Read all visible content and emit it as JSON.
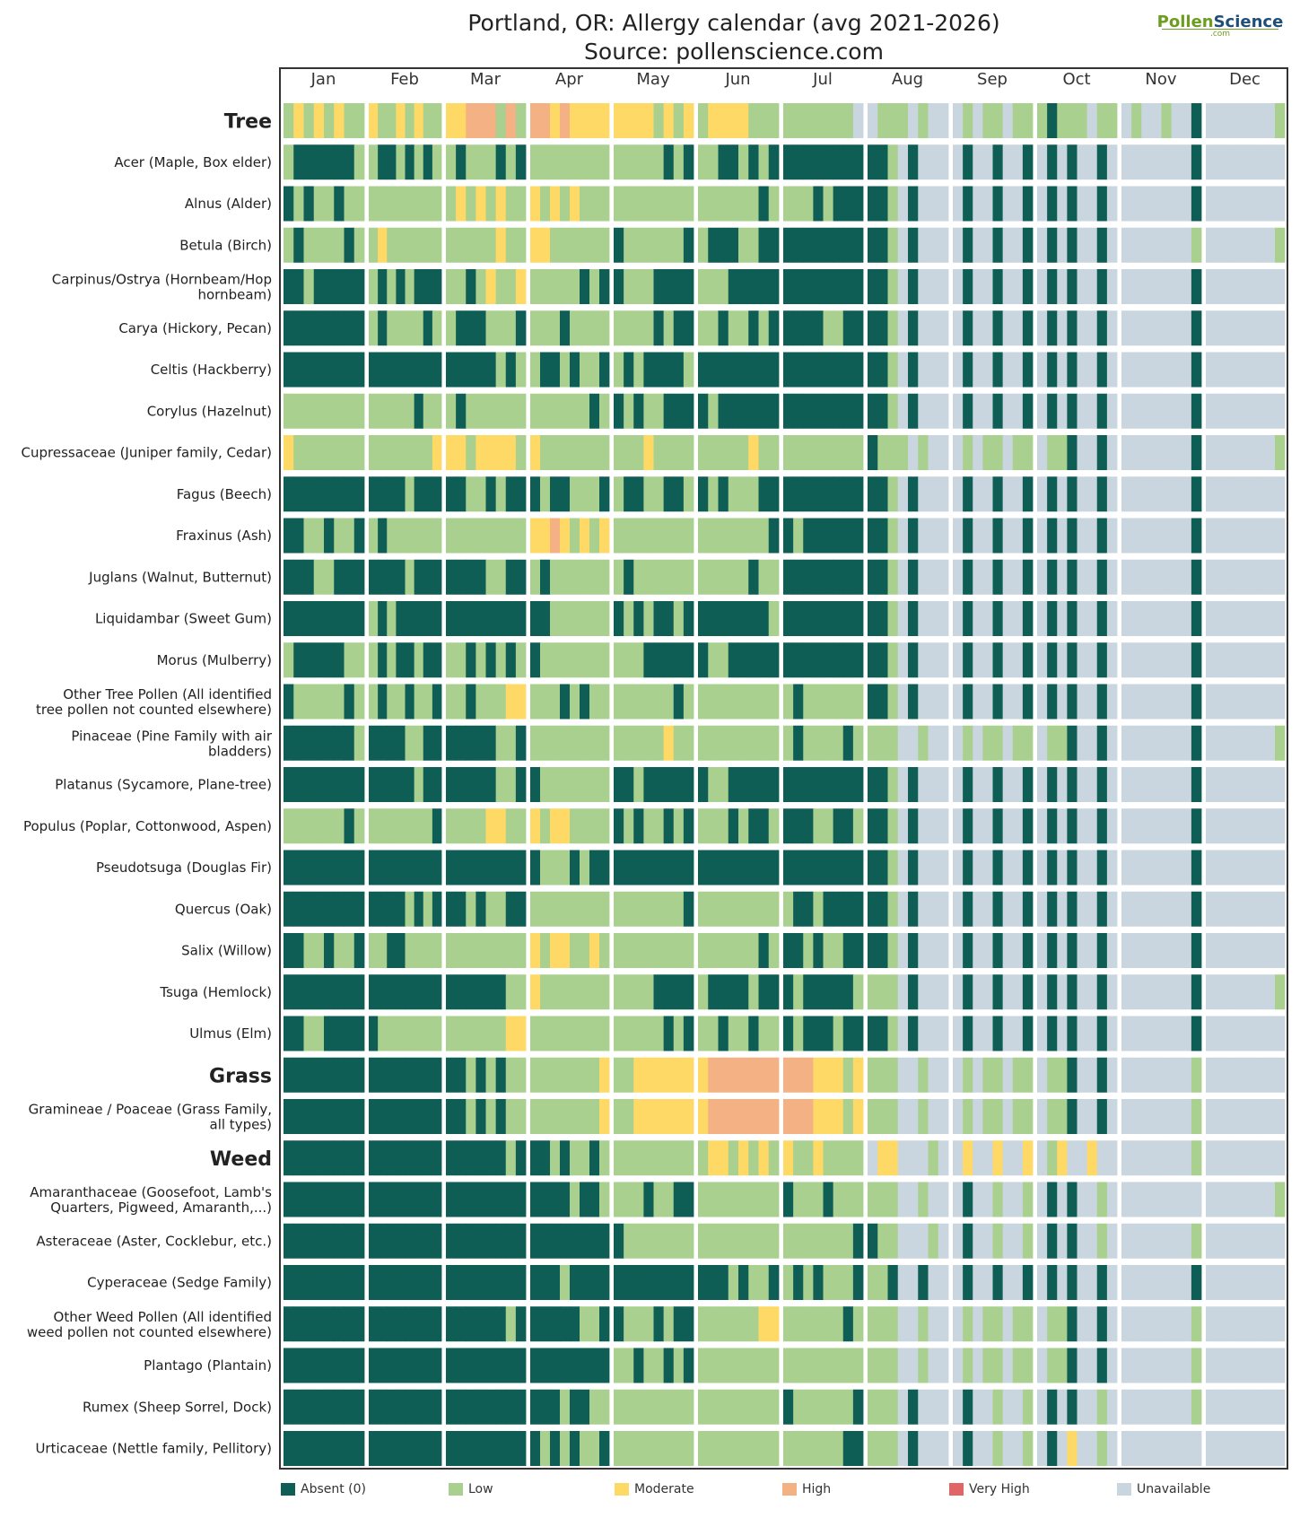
{
  "header": {
    "title_line1": "Portland, OR: Allergy calendar (avg 2021-2026)",
    "title_line2": "Source: pollenscience.com",
    "logo_pollen": "Pollen",
    "logo_science": "Science",
    "logo_com": ".com"
  },
  "colors": {
    "absent": "#0e5e55",
    "low": "#a9d08e",
    "moderate": "#ffd966",
    "high": "#f4b183",
    "very_high": "#e06666",
    "unavailable": "#c9d6df"
  },
  "legend": [
    {
      "key": "absent",
      "label": "Absent (0)"
    },
    {
      "key": "low",
      "label": "Low"
    },
    {
      "key": "moderate",
      "label": "Moderate"
    },
    {
      "key": "high",
      "label": "High"
    },
    {
      "key": "very_high",
      "label": "Very High"
    },
    {
      "key": "unavailable",
      "label": "Unavailable"
    }
  ],
  "chart_data": {
    "type": "heatmap",
    "title": "Portland, OR: Allergy calendar (avg 2021-2026)",
    "subtitle": "Source: pollenscience.com",
    "x_months": [
      "Jan",
      "Feb",
      "Mar",
      "Apr",
      "May",
      "Jun",
      "Jul",
      "Aug",
      "Sep",
      "Oct",
      "Nov",
      "Dec"
    ],
    "levels": [
      "absent",
      "low",
      "moderate",
      "high",
      "very_high",
      "unavailable"
    ],
    "encoding_note": "Each row lists 12 months; each month is a string of period codes: A=absent, L=low, M=moderate, H=high, V=very high, U=unavailable",
    "rows": [
      {
        "label": "Tree",
        "group": true,
        "months": [
          "LMLMLMLL",
          "MLLMLMLL",
          "MMHHHLHL",
          "HHMHMMMM",
          "MMMMLMLM",
          "LMMMMLLL",
          "LLLLLLLU",
          "ULLLULUU",
          "ULULLULL",
          "LALLLULL",
          "ULUULUUA",
          "UUUUUUUL"
        ]
      },
      {
        "label": "Acer (Maple, Box elder)",
        "months": [
          "LAAAAAAL",
          "LAALALAL",
          "LALLLALA",
          "LLLLLLLL",
          "LLLLLALA",
          "LLAALALA",
          "AAAAAAAA",
          "AALUAUUU",
          "UAUUAUUA",
          "UAUAUUAU",
          "UUUUUUUA",
          "UUUUUUUU"
        ]
      },
      {
        "label": "Alnus (Alder)",
        "months": [
          "ALALLALL",
          "LLLLLLLL",
          "LMLMLMLL",
          "MLMLMLLL",
          "LLLLLLLL",
          "LLLLLLAL",
          "LLLALAAA",
          "AALUAUUU",
          "UAUUAUUA",
          "UAUAUUAU",
          "UUUUUUUA",
          "UUUUUUUU"
        ]
      },
      {
        "label": "Betula (Birch)",
        "months": [
          "LALLLLAL",
          "LMLLLLLL",
          "LLLLLMLL",
          "MMLLLLLL",
          "ALLLLLLA",
          "LAAALLAA",
          "AAAAAAAA",
          "AALUAUUU",
          "UAUUAUUA",
          "UAUAUUAU",
          "UUUUUUUL",
          "UUUUUUUL"
        ]
      },
      {
        "label": "Carpinus/Ostrya (Hornbeam/Hop hornbeam)",
        "label_line1": "Carpinus/Ostrya (Hornbeam/Hop",
        "label_line2": "hornbeam)",
        "months": [
          "AALAAAAA",
          "LALALAAA",
          "LLALMLLM",
          "LLLLLALA",
          "ALLLAAAA",
          "LLLAAAAA",
          "AAAAAAAA",
          "AALUAUUU",
          "UAUUAUUA",
          "UAUAUUAU",
          "UUUUUUUA",
          "UUUUUUUU"
        ]
      },
      {
        "label": "Carya (Hickory, Pecan)",
        "months": [
          "AAAAAAAA",
          "LALLLLAL",
          "LAAALLLA",
          "LLLALLLL",
          "LLLLALAA",
          "LLALLALA",
          "AAAALLAA",
          "AALUAUUU",
          "UAUUAUUA",
          "UAUAUUAU",
          "UUUUUUUA",
          "UUUUUUUU"
        ]
      },
      {
        "label": "Celtis (Hackberry)",
        "months": [
          "AAAAAAAA",
          "AAAAAAAA",
          "AAAAALAL",
          "LAALALLA",
          "LALAAAAL",
          "AAAAAAAA",
          "AAAAAAAA",
          "AALUAUUU",
          "UAUUAUUA",
          "UAUAUUAU",
          "UUUUUUUA",
          "UUUUUUUU"
        ]
      },
      {
        "label": "Corylus (Hazelnut)",
        "months": [
          "LLLLLLLL",
          "LLLLLALL",
          "LALLLLLL",
          "LLLLLLAL",
          "ALALLAAA",
          "ALAAAAAA",
          "AAAAAAAA",
          "AALUAUUU",
          "UAUUAUUA",
          "UAUAUUAU",
          "UUUUUUUA",
          "UUUUUUUU"
        ]
      },
      {
        "label": "Cupressaceae (Juniper family, Cedar)",
        "months": [
          "MLLLLLLL",
          "LLLLLLLM",
          "MMLMMMML",
          "MLLLLLLL",
          "LLLMLLLL",
          "LLLLLMLL",
          "LLLLLLLL",
          "ALLLULUU",
          "ULULLULL",
          "ULLAUUAU",
          "UUUUUUUA",
          "UUUUUUUL"
        ]
      },
      {
        "label": "Fagus (Beech)",
        "months": [
          "AAAAAAAA",
          "AAAALAAA",
          "AALLALAA",
          "ALAALLLA",
          "LAALLAAL",
          "ALALLLAA",
          "AAAAAAAA",
          "AALUAUUU",
          "UAUUAUUA",
          "UAUAUUAU",
          "UUUUUUUA",
          "UUUUUUUU"
        ]
      },
      {
        "label": "Fraxinus (Ash)",
        "months": [
          "AALLALLA",
          "LALLLLLL",
          "LLLLLLLL",
          "MMHMLMLM",
          "LLLLLLLL",
          "LLLLLLLA",
          "ALAAAAAA",
          "AALUAUUU",
          "UAUUAUUA",
          "UAUAUUAU",
          "UUUUUUUA",
          "UUUUUUUU"
        ]
      },
      {
        "label": "Juglans (Walnut, Butternut)",
        "months": [
          "AAALLAAA",
          "AAAALAAA",
          "AAAALLAA",
          "LALLLLLL",
          "LALLLLLL",
          "LLLLLALL",
          "AAAAAAAA",
          "AALUAUUU",
          "UAUUAUUA",
          "UAUAUUAU",
          "UUUUUUUA",
          "UUUUUUUU"
        ]
      },
      {
        "label": "Liquidambar (Sweet Gum)",
        "months": [
          "AAAAAAAA",
          "LALAAAAA",
          "AAAAAAAA",
          "AALLLLLL",
          "ALALAALA",
          "AAAAAAAL",
          "AAAAAAAA",
          "AALUAUUU",
          "UAUUAUUA",
          "UAUAUUAU",
          "UUUUUUUA",
          "UUUUUUUU"
        ]
      },
      {
        "label": "Morus (Mulberry)",
        "months": [
          "LAAAAALL",
          "LALAALAA",
          "LLALALAL",
          "ALLLLLLL",
          "LLLAAAAA",
          "ALLAAAAA",
          "AAAAAAAA",
          "AALUAUUU",
          "UAUUAUUA",
          "UAUAUUAU",
          "UUUUUUUA",
          "UUUUUUUU"
        ]
      },
      {
        "label": "Other Tree Pollen (All identified tree pollen not counted elsewhere)",
        "label_line1": "Other Tree Pollen (All identified",
        "label_line2": "tree pollen not counted elsewhere)",
        "months": [
          "ALLLLLAL",
          "LALLALLA",
          "LLALLLMM",
          "LLLALALL",
          "LLLLLLAL",
          "LLLLLLLL",
          "LALLLLLL",
          "AALUAUUU",
          "UAUUAUUA",
          "UAUAUUAU",
          "UUUUUUUA",
          "UUUUUUUU"
        ]
      },
      {
        "label": "Pinaceae (Pine Family with air bladders)",
        "label_line1": "Pinaceae (Pine Family with air",
        "label_line2": "bladders)",
        "months": [
          "AAAAAAAL",
          "AAAALLAA",
          "AAAAALLA",
          "LLLLLLLL",
          "LLLLLMLL",
          "LLLLLLLL",
          "LALLLLAL",
          "LLLUULUU",
          "ULULLULL",
          "ULLAUUAU",
          "UUUUUUUA",
          "UUUUUUUL"
        ]
      },
      {
        "label": "Platanus (Sycamore, Plane-tree)",
        "months": [
          "AAAAAAAA",
          "AAAAALAA",
          "AAAAALLA",
          "ALLLLLLL",
          "AALAAAAA",
          "ALLAAAAA",
          "AAAAAAAA",
          "AALUAUUU",
          "UAUUAUUA",
          "UAUAUUAU",
          "UUUUUUUA",
          "UUUUUUUU"
        ]
      },
      {
        "label": "Populus (Poplar, Cottonwood, Aspen)",
        "months": [
          "LLLLLLAL",
          "LLLLLLLA",
          "LLLLMMLL",
          "MLMMLLLL",
          "ALALLALA",
          "LLLALAAL",
          "AAALLAAL",
          "AALUAUUU",
          "UAUUAUUA",
          "UAUAUUAU",
          "UUUUUUUA",
          "UUUUUUUU"
        ]
      },
      {
        "label": "Pseudotsuga (Douglas Fir)",
        "months": [
          "AAAAAAAA",
          "AAAAAAAA",
          "AAAAAAAA",
          "ALLLALAA",
          "AAAAAAAA",
          "AAAAAAAA",
          "AAAAAAAA",
          "AALUAUUU",
          "UAUUAUUA",
          "UAUAUUAU",
          "UUUUUUUA",
          "UUUUUUUU"
        ]
      },
      {
        "label": "Quercus (Oak)",
        "months": [
          "AAAAAAAA",
          "AAAALALA",
          "AALALLAA",
          "LLLLLLLL",
          "LLLLLLLA",
          "LLLLLLLL",
          "LAALAAAA",
          "AALUAUUU",
          "UAUUAUUA",
          "UAUAUUAU",
          "UUUUUUUA",
          "UUUUUUUU"
        ]
      },
      {
        "label": "Salix (Willow)",
        "months": [
          "AALLALLA",
          "LLAALLLL",
          "LLLLLLLL",
          "MLMMLLML",
          "LLLLLLLL",
          "LLLLLLAL",
          "AALALLAA",
          "AALUAUUU",
          "UAUUAUUA",
          "UAUAUUAU",
          "UUUUUUUA",
          "UUUUUUUU"
        ]
      },
      {
        "label": "Tsuga (Hemlock)",
        "months": [
          "AAAAAAAA",
          "AAAAAAAA",
          "AAAAAALL",
          "MLLLLLLL",
          "LLLLAAAA",
          "LAAAALAA",
          "ALAAAAAL",
          "LLLUAUUU",
          "UAUUAUUA",
          "UAUAUUAU",
          "UUUUUUUA",
          "UUUUUUUL"
        ]
      },
      {
        "label": "Ulmus (Elm)",
        "months": [
          "AALLAAAA",
          "ALLLLLLL",
          "LLLLLLMM",
          "LLLLLLLL",
          "LLLLLALA",
          "LLALLALL",
          "ALAAALAA",
          "AALUAUUU",
          "UAUUAUUA",
          "UAUAUUAU",
          "UUUUUUUA",
          "UUUUUUUU"
        ]
      },
      {
        "label": "Grass",
        "group": true,
        "months": [
          "AAAAAAAA",
          "AAAAAAAA",
          "AALALALL",
          "LLLLLLLM",
          "LLMMMMMM",
          "MHHHHHHH",
          "HHHMMMLM",
          "LLLUULUU",
          "ULULLULL",
          "ULLAUUAU",
          "UUUUUUUL",
          "UUUUUUUU"
        ]
      },
      {
        "label": "Gramineae / Poaceae (Grass Family, all types)",
        "label_line1": "Gramineae / Poaceae (Grass Family,",
        "label_line2": "all types)",
        "months": [
          "AAAAAAAA",
          "AAAAAAAA",
          "AALALALL",
          "LLLLLLLM",
          "LLMMMMMM",
          "MHHHHHHH",
          "HHHMMMLM",
          "LLLUULUU",
          "ULULLULL",
          "ULLAUUAU",
          "UUUUUUUL",
          "UUUUUUUU"
        ]
      },
      {
        "label": "Weed",
        "group": true,
        "months": [
          "AAAAAAAA",
          "AAAAAAAA",
          "AAAAAALA",
          "AALALLAL",
          "LLLLLLLL",
          "LMMLMLML",
          "MLLMLLLL",
          "UMMUUULU",
          "UMUUMUUM",
          "ULMUUMUU",
          "UUUUUUUL",
          "UUUUUUUU"
        ]
      },
      {
        "label": "Amaranthaceae (Goosefoot, Lamb's Quarters, Pigweed, Amaranth,...)",
        "label_line1": "Amaranthaceae (Goosefoot, Lamb's",
        "label_line2": "Quarters, Pigweed, Amaranth,...)",
        "months": [
          "AAAAAAAA",
          "AAAAAAAA",
          "AAAAAAAA",
          "AAAALAAL",
          "LLLALLAA",
          "LLLLLLLL",
          "ALLLALLL",
          "LLLUULUU",
          "UAUULUUL",
          "UAUAUULU",
          "UUUUUUUU",
          "UUUUUUUL"
        ]
      },
      {
        "label": "Asteraceae (Aster, Cocklebur, etc.)",
        "months": [
          "AAAAAAAA",
          "AAAAAAAA",
          "AAAAAAAA",
          "AAAAAAAA",
          "ALLLLLLL",
          "LLLLLLLL",
          "LLLLLLLA",
          "ALLUUULU",
          "UAUULUUL",
          "UAUAUULU",
          "UUUUUUUL",
          "UUUUUUUU"
        ]
      },
      {
        "label": "Cyperaceae (Sedge Family)",
        "months": [
          "AAAAAAAA",
          "AAAAAAAA",
          "AAAAAAAA",
          "AAALAAAA",
          "AAAAAAAA",
          "AAALALLA",
          "LALALLLA",
          "LLAUUAUU",
          "UAUUAUUA",
          "UAUAUUAU",
          "UUUUUUUA",
          "UUUUUUUU"
        ]
      },
      {
        "label": "Other Weed Pollen (All identified weed pollen not counted elsewhere)",
        "label_line1": "Other Weed Pollen (All identified",
        "label_line2": "weed pollen not counted elsewhere)",
        "months": [
          "AAAAAAAA",
          "AAAAAAAA",
          "AAAAAALA",
          "AAAAALLA",
          "ALLLALAA",
          "LLLLLLMM",
          "LLLLLLAL",
          "LLLUULUU",
          "ULULLULL",
          "ULLAUUAU",
          "UUUUUUUL",
          "UUUUUUUU"
        ]
      },
      {
        "label": "Plantago (Plantain)",
        "months": [
          "AAAAAAAA",
          "AAAAAAAA",
          "AAAAAAAA",
          "AAAAAAAA",
          "LLALLALA",
          "LLLLLLLL",
          "LLLLLLLL",
          "LLLUULUU",
          "ULULLULL",
          "ULLAUUAU",
          "UUUUUUUL",
          "UUUUUUUU"
        ]
      },
      {
        "label": "Rumex (Sheep Sorrel, Dock)",
        "months": [
          "AAAAAAAA",
          "AAAAAAAA",
          "AAAAAAAA",
          "AAALAALL",
          "LLLLLLLL",
          "LLLLLLLL",
          "ALLLLLLA",
          "LLLUAUUU",
          "UAUULUUL",
          "UAUAUULU",
          "UUUUUUUL",
          "UUUUUUUU"
        ]
      },
      {
        "label": "Urticaceae (Nettle family, Pellitory)",
        "months": [
          "AAAAAAAA",
          "AAAAAAAA",
          "AAAAAAAA",
          "ALALALLA",
          "LLLLLLLL",
          "LLLLLLLL",
          "LLLLLLAA",
          "LLLUAUUU",
          "UAUULUUL",
          "UAUMUULU",
          "UUUUUUUU",
          "UUUUUUUU"
        ]
      }
    ]
  }
}
